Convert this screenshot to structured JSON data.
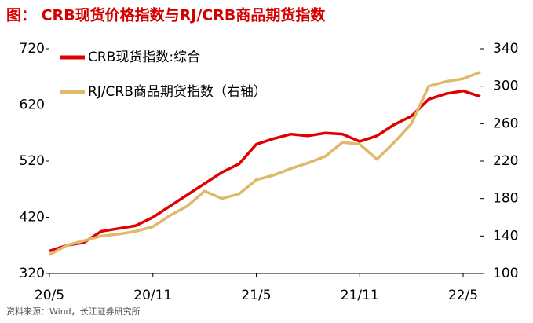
{
  "chart_data": {
    "type": "line",
    "title": "图：  CRB现货价格指数与RJ/CRB商品期货指数",
    "source": "资料来源：Wind，长江证券研究所",
    "categories": [
      "20/5",
      null,
      null,
      null,
      null,
      null,
      "20/11",
      null,
      null,
      null,
      null,
      null,
      "21/5",
      null,
      null,
      null,
      null,
      null,
      "21/11",
      null,
      null,
      null,
      null,
      null,
      "22/5",
      null
    ],
    "series": [
      {
        "name": "CRB现货指数:综合",
        "color": "#e00000",
        "values": [
          360,
          370,
          375,
          395,
          400,
          405,
          420,
          440,
          460,
          480,
          500,
          515,
          550,
          560,
          568,
          565,
          570,
          568,
          555,
          565,
          585,
          600,
          630,
          640,
          645,
          635
        ]
      },
      {
        "name": "RJ/CRB商品期货指数（右轴）",
        "color": "#e0b86a",
        "axis": "y2",
        "values": [
          120,
          130,
          135,
          140,
          142,
          145,
          150,
          162,
          172,
          188,
          180,
          185,
          200,
          205,
          212,
          218,
          225,
          240,
          238,
          222,
          240,
          260,
          300,
          305,
          308,
          315
        ]
      }
    ],
    "ylim": [
      320,
      720
    ],
    "yticks": [
      320,
      420,
      520,
      620,
      720
    ],
    "y2lim": [
      100,
      340
    ],
    "y2ticks": [
      100,
      140,
      180,
      220,
      260,
      300,
      340
    ],
    "legend": "top-left"
  }
}
